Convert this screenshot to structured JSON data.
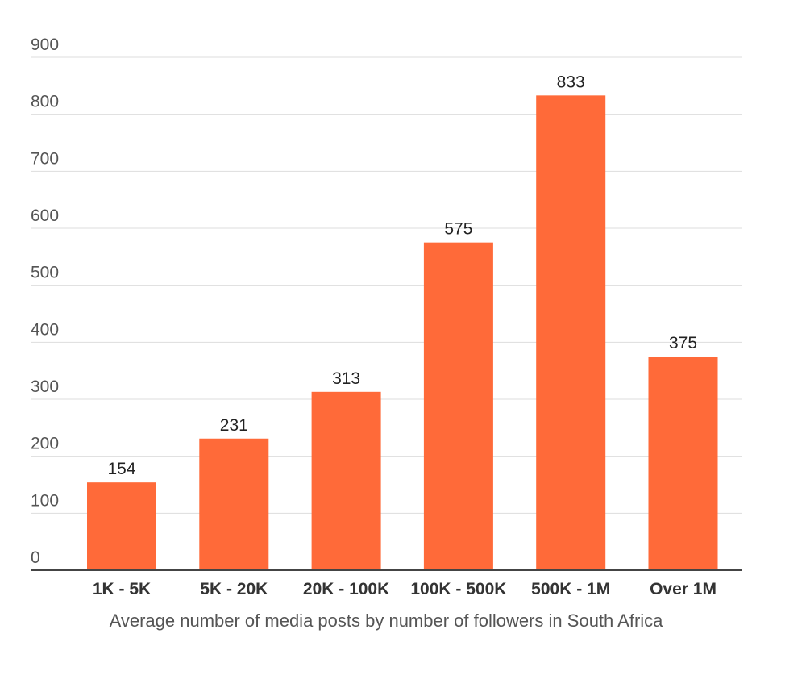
{
  "chart_data": {
    "type": "bar",
    "title": "",
    "xlabel": "Average number of media posts by number of followers in South Africa",
    "ylabel": "",
    "categories": [
      "1K - 5K",
      "5K - 20K",
      "20K - 100K",
      "100K - 500K",
      "500K - 1M",
      "Over 1M"
    ],
    "values": [
      154,
      231,
      313,
      575,
      833,
      375
    ],
    "data_labels": [
      "154",
      "231",
      "313",
      "575",
      "833",
      "375"
    ],
    "ylim": [
      0,
      900
    ],
    "yticks": [
      0,
      100,
      200,
      300,
      400,
      500,
      600,
      700,
      800,
      900
    ],
    "grid": true,
    "legend": "none",
    "colors": {
      "bar": "#ff6a39",
      "grid": "#dddddd",
      "baseline": "#444444"
    }
  }
}
